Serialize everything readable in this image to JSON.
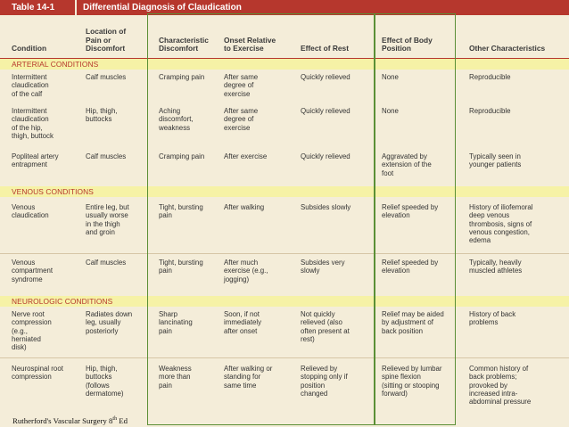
{
  "table": {
    "number": "Table 14-1",
    "title": "Differential Diagnosis of Claudication",
    "headers": {
      "condition": "Condition",
      "location": "Location of\nPain or\nDiscomfort",
      "discomfort": "Characteristic\nDiscomfort",
      "onset": "Onset Relative\nto Exercise",
      "rest": "Effect of Rest",
      "position": "Effect of Body\nPosition",
      "other": "Other Characteristics"
    },
    "sections": {
      "arterial": "ARTERIAL CONDITIONS",
      "venous": "VENOUS CONDITIONS",
      "neurologic": "NEUROLOGIC CONDITIONS"
    },
    "rows": [
      {
        "condition": "Intermittent\n   claudication\n   of the calf",
        "location": "Calf muscles",
        "discomfort": "Cramping pain",
        "onset": "After same\n   degree of\n   exercise",
        "rest": "Quickly relieved",
        "position": "None",
        "other": "Reproducible"
      },
      {
        "condition": "Intermittent\n   claudication\n   of the hip,\n   thigh, buttock",
        "location": "Hip, thigh,\n   buttocks",
        "discomfort": "Aching\n   discomfort,\n   weakness",
        "onset": "After same\n   degree of\n   exercise",
        "rest": "Quickly relieved",
        "position": "None",
        "other": "Reproducible"
      },
      {
        "condition": "Popliteal artery\n   entrapment",
        "location": "Calf muscles",
        "discomfort": "Cramping pain",
        "onset": "After exercise",
        "rest": "Quickly relieved",
        "position": "Aggravated by\n   extension of the\n   foot",
        "other": "Typically seen in\n   younger patients"
      },
      {
        "condition": "Venous\n   claudication",
        "location": "Entire leg, but\n   usually worse\n   in the thigh\n   and groin",
        "discomfort": "Tight, bursting\n   pain",
        "onset": "After walking",
        "rest": "Subsides slowly",
        "position": "Relief speeded by\n   elevation",
        "other": "History of iliofemoral\n   deep venous\n   thrombosis, signs of\n   venous congestion,\n   edema"
      },
      {
        "condition": "Venous\n   compartment\n   syndrome",
        "location": "Calf muscles",
        "discomfort": "Tight, bursting\n   pain",
        "onset": "After much\n   exercise (e.g.,\n   jogging)",
        "rest": "Subsides very\n   slowly",
        "position": "Relief speeded by\n   elevation",
        "other": "Typically, heavily\n   muscled athletes"
      },
      {
        "condition": "Nerve root\n   compression\n   (e.g.,\n   herniated\n   disk)",
        "location": "Radiates down\n   leg, usually\n   posteriorly",
        "discomfort": "Sharp\n   lancinating\n   pain",
        "onset": "Soon, if not\n   immediately\n   after onset",
        "rest": "Not quickly\n   relieved (also\n   often present at\n   rest)",
        "position": "Relief may be aided\n   by adjustment of\n   back position",
        "other": "History of back\n   problems"
      },
      {
        "condition": "Neurospinal root\n   compression",
        "location": "Hip, thigh,\n   buttocks\n   (follows\n   dermatome)",
        "discomfort": "Weakness\n   more than\n   pain",
        "onset": "After walking or\n   standing for\n   same time",
        "rest": "Relieved by\n   stopping only if\n   position\n   changed",
        "position": "Relieved by lumbar\n   spine flexion\n   (sitting or stooping\n   forward)",
        "other": "Common history of\n   back problems;\n   provoked by\n   increased intra-\n   abdominal pressure"
      }
    ]
  },
  "source": {
    "text": "Rutherford's Vascular Surgery 8",
    "sup": "th",
    "suffix": " Ed"
  },
  "colors": {
    "title_bar": "#b6372d",
    "page": "#f4edd9",
    "section_band": "#f6f2a6",
    "highlight_frame": "#5b8f36"
  }
}
